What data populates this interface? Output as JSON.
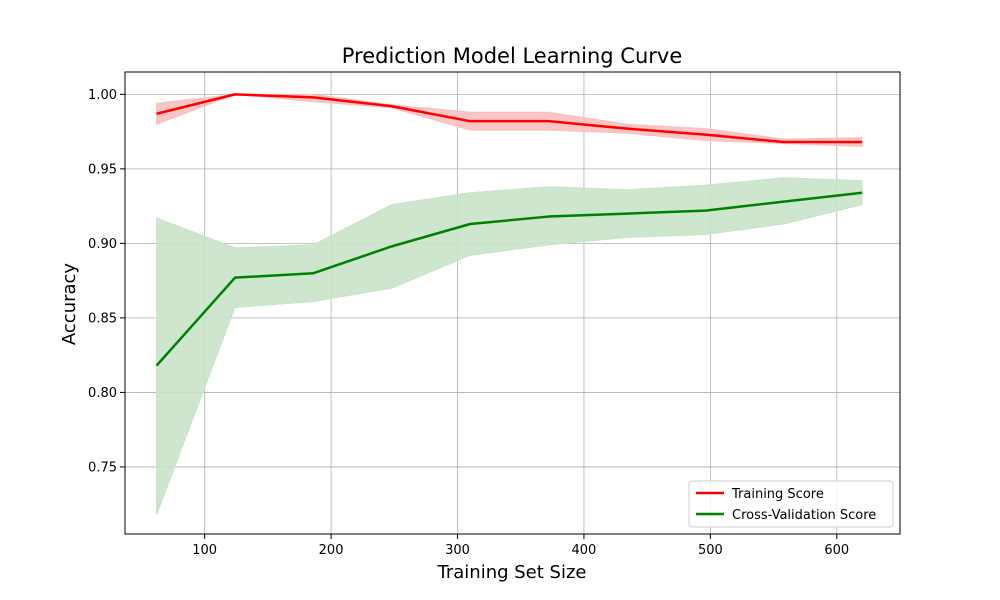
{
  "chart_data": {
    "type": "line",
    "title": "Prediction Model Learning Curve",
    "xlabel": "Training Set Size",
    "ylabel": "Accuracy",
    "xlim": [
      37,
      650
    ],
    "ylim": [
      0.705,
      1.015
    ],
    "xticks": [
      100,
      200,
      300,
      400,
      500,
      600
    ],
    "xtick_labels": [
      "100",
      "200",
      "300",
      "400",
      "500",
      "600"
    ],
    "yticks": [
      0.75,
      0.8,
      0.85,
      0.9,
      0.95,
      1.0
    ],
    "ytick_labels": [
      "0.75",
      "0.80",
      "0.85",
      "0.90",
      "0.95",
      "1.00"
    ],
    "grid": true,
    "legend_position": "lower-right",
    "x": [
      62,
      124,
      186,
      248,
      310,
      372,
      434,
      496,
      558,
      620
    ],
    "series": [
      {
        "name": "Training Score",
        "color": "#ff0000",
        "band_color": "#f8bfbf",
        "values": [
          0.987,
          1.0,
          0.998,
          0.992,
          0.982,
          0.982,
          0.977,
          0.973,
          0.968,
          0.968
        ],
        "lower": [
          0.98,
          1.0,
          0.995,
          0.991,
          0.976,
          0.976,
          0.974,
          0.969,
          0.967,
          0.965
        ],
        "upper": [
          0.994,
          1.0,
          1.0,
          0.993,
          0.988,
          0.988,
          0.98,
          0.977,
          0.97,
          0.971
        ]
      },
      {
        "name": "Cross-Validation Score",
        "color": "#008000",
        "band_color": "#c8e3c8",
        "values": [
          0.818,
          0.877,
          0.88,
          0.898,
          0.913,
          0.918,
          0.92,
          0.922,
          0.928,
          0.934
        ],
        "lower": [
          0.718,
          0.857,
          0.861,
          0.87,
          0.892,
          0.899,
          0.904,
          0.906,
          0.913,
          0.926
        ],
        "upper": [
          0.917,
          0.897,
          0.899,
          0.926,
          0.934,
          0.938,
          0.936,
          0.939,
          0.944,
          0.942
        ]
      }
    ]
  }
}
